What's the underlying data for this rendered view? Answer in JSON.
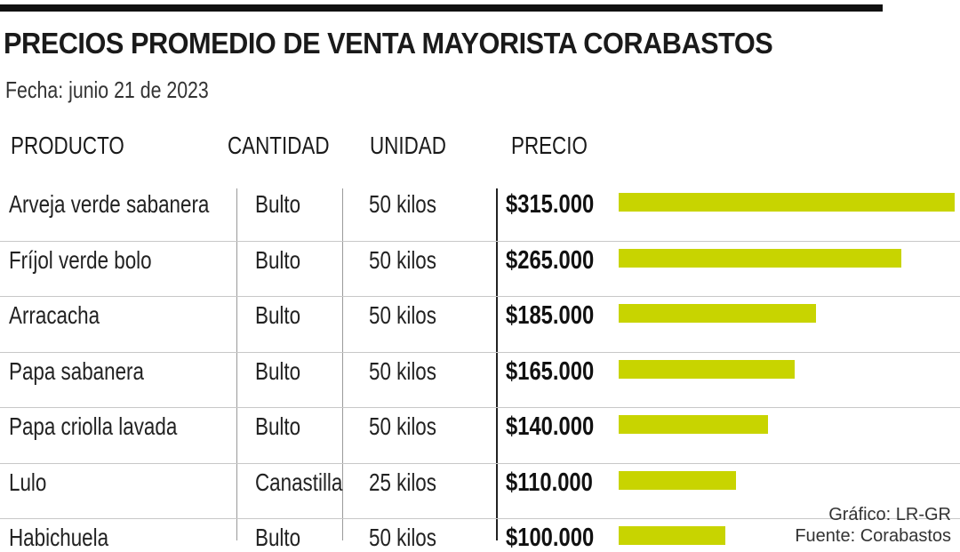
{
  "title": "PRECIOS PROMEDIO DE VENTA MAYORISTA  CORABASTOS",
  "subtitle": "Fecha: junio 21 de 2023",
  "headers": {
    "producto": "PRODUCTO",
    "cantidad": "CANTIDAD",
    "unidad": "UNIDAD",
    "precio": "PRECIO"
  },
  "credits": {
    "grafico": "Gráfico: LR-GR",
    "fuente": "Fuente: Corabastos"
  },
  "colors": {
    "bar": "#c8d400",
    "topbar": "#111111"
  },
  "chart_data": {
    "type": "bar",
    "orientation": "horizontal",
    "title": "PRECIOS PROMEDIO DE VENTA MAYORISTA  CORABASTOS",
    "subtitle": "Fecha: junio 21 de 2023",
    "xlabel": "PRECIO",
    "ylabel": "PRODUCTO",
    "xlim": [
      0,
      315000
    ],
    "grid": false,
    "categories": [
      "Arveja verde sabanera",
      "Fríjol verde bolo",
      "Arracacha",
      "Papa sabanera",
      "Papa criolla lavada",
      "Lulo",
      "Habichuela"
    ],
    "values": [
      315000,
      265000,
      185000,
      165000,
      140000,
      110000,
      100000
    ],
    "rows": [
      {
        "producto": "Arveja verde sabanera",
        "cantidad": "Bulto",
        "unidad": "50 kilos",
        "precio_label": "$315.000",
        "precio": 315000
      },
      {
        "producto": "Fríjol verde bolo",
        "cantidad": "Bulto",
        "unidad": "50 kilos",
        "precio_label": "$265.000",
        "precio": 265000
      },
      {
        "producto": "Arracacha",
        "cantidad": "Bulto",
        "unidad": "50 kilos",
        "precio_label": "$185.000",
        "precio": 185000
      },
      {
        "producto": "Papa sabanera",
        "cantidad": "Bulto",
        "unidad": "50 kilos",
        "precio_label": "$165.000",
        "precio": 165000
      },
      {
        "producto": "Papa criolla lavada",
        "cantidad": "Bulto",
        "unidad": "50 kilos",
        "precio_label": "$140.000",
        "precio": 140000
      },
      {
        "producto": "Lulo",
        "cantidad": "Canastilla",
        "unidad": "25 kilos",
        "precio_label": "$110.000",
        "precio": 110000
      },
      {
        "producto": "Habichuela",
        "cantidad": "Bulto",
        "unidad": "50 kilos",
        "precio_label": "$100.000",
        "precio": 100000
      }
    ]
  }
}
